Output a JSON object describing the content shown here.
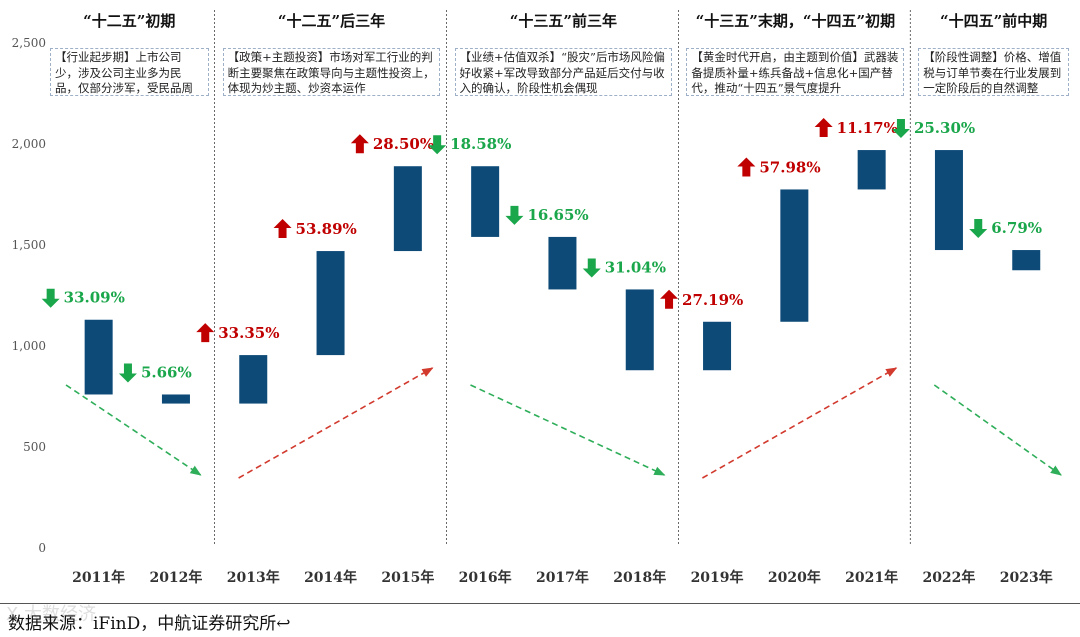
{
  "chart_data": {
    "type": "waterfall",
    "title": "",
    "xlabel": "",
    "ylabel": "",
    "ylim": [
      0,
      2500
    ],
    "y_ticks": [
      0,
      500,
      1000,
      1500,
      2000,
      2500
    ],
    "y_tick_labels": [
      "0",
      "500",
      "1,000",
      "1,500",
      "2,000",
      "2,500"
    ],
    "categories": [
      "2011年",
      "2012年",
      "2013年",
      "2014年",
      "2015年",
      "2016年",
      "2017年",
      "2018年",
      "2019年",
      "2020年",
      "2021年",
      "2022年",
      "2023年"
    ],
    "bars": [
      {
        "category": "2011年",
        "start": 1130,
        "end": 760,
        "change_label": "33.09%",
        "direction": "down"
      },
      {
        "category": "2012年",
        "start": 760,
        "end": 715,
        "change_label": "5.66%",
        "direction": "down"
      },
      {
        "category": "2013年",
        "start": 715,
        "end": 955,
        "change_label": "33.35%",
        "direction": "up"
      },
      {
        "category": "2014年",
        "start": 955,
        "end": 1470,
        "change_label": "53.89%",
        "direction": "up"
      },
      {
        "category": "2015年",
        "start": 1470,
        "end": 1890,
        "change_label": "28.50%",
        "direction": "up"
      },
      {
        "category": "2016年",
        "start": 1890,
        "end": 1540,
        "change_label": "18.58%",
        "direction": "down"
      },
      {
        "category": "2017年",
        "start": 1540,
        "end": 1280,
        "change_label": "16.65%",
        "direction": "down"
      },
      {
        "category": "2018年",
        "start": 1280,
        "end": 880,
        "change_label": "31.04%",
        "direction": "down"
      },
      {
        "category": "2019年",
        "start": 880,
        "end": 1120,
        "change_label": "27.19%",
        "direction": "up"
      },
      {
        "category": "2020年",
        "start": 1120,
        "end": 1775,
        "change_label": "57.98%",
        "direction": "up"
      },
      {
        "category": "2021年",
        "start": 1775,
        "end": 1970,
        "change_label": "11.17%",
        "direction": "up"
      },
      {
        "category": "2022年",
        "start": 1970,
        "end": 1475,
        "change_label": "25.30%",
        "direction": "down"
      },
      {
        "category": "2023年",
        "start": 1475,
        "end": 1375,
        "change_label": "6.79%",
        "direction": "down"
      }
    ],
    "phases": [
      {
        "title": "“十二五”初期",
        "box_text": "【行业起步期】上市公司少，涉及公司主业多为民品，仅部分涉军，受民品周期影响大",
        "trend": "down"
      },
      {
        "title": "“十二五”后三年",
        "box_text": "【政策+主题投资】市场对军工行业的判断主要聚焦在政策导向与主题性投资上，体现为炒主题、炒资本运作",
        "trend": "up"
      },
      {
        "title": "“十三五”前三年",
        "box_text": "【业绩+估值双杀】“股灾”后市场风险偏好收紧+军改导致部分产品延后交付与收入的确认，阶段性机会偶现",
        "trend": "down"
      },
      {
        "title": "“十三五”末期，“十四五”初期",
        "box_text": "【黄金时代开启，由主题到价值】武器装备提质补量+练兵备战+信息化+国产替代，推动“十四五”景气度提升",
        "trend": "up"
      },
      {
        "title": "“十四五”前中期",
        "box_text": "【阶段性调整】价格、增值税与订单节奏在行业发展到一定阶段后的自然调整",
        "trend": "down"
      }
    ],
    "colors": {
      "bar": "#0d4a78",
      "up": "#c00000",
      "down": "#1aa64a",
      "trend_up": "#d23a2e",
      "trend_down": "#2fae5a",
      "axis_text": "#555555"
    }
  },
  "footer": {
    "source": "数据来源：iFinD，中航证券研究所↩",
    "watermark": "X 大数经济"
  }
}
